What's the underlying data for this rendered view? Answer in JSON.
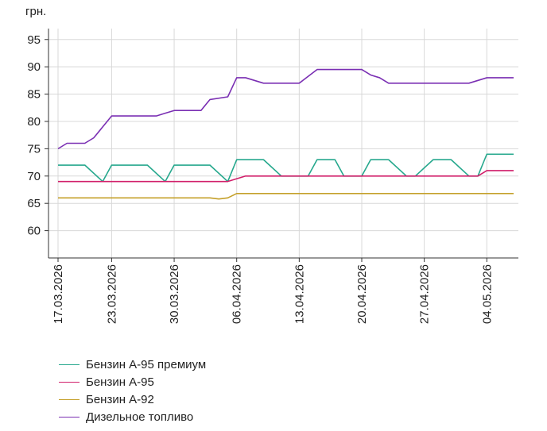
{
  "chart_data": {
    "type": "line",
    "ylabel": "грн.",
    "ylim": [
      55,
      97
    ],
    "yticks": [
      60,
      65,
      70,
      75,
      80,
      85,
      90,
      95
    ],
    "x_tick_labels": [
      "17.03.2026",
      "23.03.2026",
      "30.03.2026",
      "06.04.2026",
      "13.04.2026",
      "20.04.2026",
      "27.04.2026",
      "04.05.2026"
    ],
    "x_start": "17.03.2026",
    "x_end": "07.05.2026",
    "grid": true,
    "legend_position": "bottom-left",
    "series": [
      {
        "name": "Бензин А-95 премиум",
        "color": "#26a88d",
        "points": [
          [
            "17.03.2026",
            72
          ],
          [
            "20.03.2026",
            72
          ],
          [
            "22.03.2026",
            69
          ],
          [
            "23.03.2026",
            72
          ],
          [
            "27.03.2026",
            72
          ],
          [
            "29.03.2026",
            69
          ],
          [
            "30.03.2026",
            72
          ],
          [
            "03.04.2026",
            72
          ],
          [
            "05.04.2026",
            69
          ],
          [
            "06.04.2026",
            73
          ],
          [
            "09.04.2026",
            73
          ],
          [
            "11.04.2026",
            70
          ],
          [
            "14.04.2026",
            70
          ],
          [
            "15.04.2026",
            73
          ],
          [
            "17.04.2026",
            73
          ],
          [
            "18.04.2026",
            70
          ],
          [
            "20.04.2026",
            70
          ],
          [
            "21.04.2026",
            73
          ],
          [
            "23.04.2026",
            73
          ],
          [
            "25.04.2026",
            70
          ],
          [
            "26.04.2026",
            70
          ],
          [
            "28.04.2026",
            73
          ],
          [
            "30.04.2026",
            73
          ],
          [
            "02.05.2026",
            70
          ],
          [
            "03.05.2026",
            70
          ],
          [
            "04.05.2026",
            74
          ],
          [
            "07.05.2026",
            74
          ]
        ]
      },
      {
        "name": "Бензин А-95",
        "color": "#d11f6a",
        "points": [
          [
            "17.03.2026",
            69
          ],
          [
            "05.04.2026",
            69
          ],
          [
            "07.04.2026",
            70
          ],
          [
            "03.05.2026",
            70
          ],
          [
            "04.05.2026",
            71
          ],
          [
            "07.05.2026",
            71
          ]
        ]
      },
      {
        "name": "Бензин А-92",
        "color": "#c4a02a",
        "points": [
          [
            "17.03.2026",
            66
          ],
          [
            "03.04.2026",
            66
          ],
          [
            "04.04.2026",
            65.8
          ],
          [
            "05.04.2026",
            66
          ],
          [
            "06.04.2026",
            66.8
          ],
          [
            "07.05.2026",
            66.8
          ]
        ]
      },
      {
        "name": "Дизельное топливо",
        "color": "#7a2fb3",
        "points": [
          [
            "17.03.2026",
            75
          ],
          [
            "18.03.2026",
            76
          ],
          [
            "20.03.2026",
            76
          ],
          [
            "21.03.2026",
            77
          ],
          [
            "23.03.2026",
            81
          ],
          [
            "28.03.2026",
            81
          ],
          [
            "29.03.2026",
            81.5
          ],
          [
            "30.03.2026",
            82
          ],
          [
            "02.04.2026",
            82
          ],
          [
            "03.04.2026",
            84
          ],
          [
            "05.04.2026",
            84.5
          ],
          [
            "06.04.2026",
            88
          ],
          [
            "07.04.2026",
            88
          ],
          [
            "09.04.2026",
            87
          ],
          [
            "13.04.2026",
            87
          ],
          [
            "15.04.2026",
            89.5
          ],
          [
            "20.04.2026",
            89.5
          ],
          [
            "21.04.2026",
            88.5
          ],
          [
            "22.04.2026",
            88
          ],
          [
            "23.04.2026",
            87
          ],
          [
            "02.05.2026",
            87
          ],
          [
            "04.05.2026",
            88
          ],
          [
            "07.05.2026",
            88
          ]
        ]
      }
    ]
  }
}
